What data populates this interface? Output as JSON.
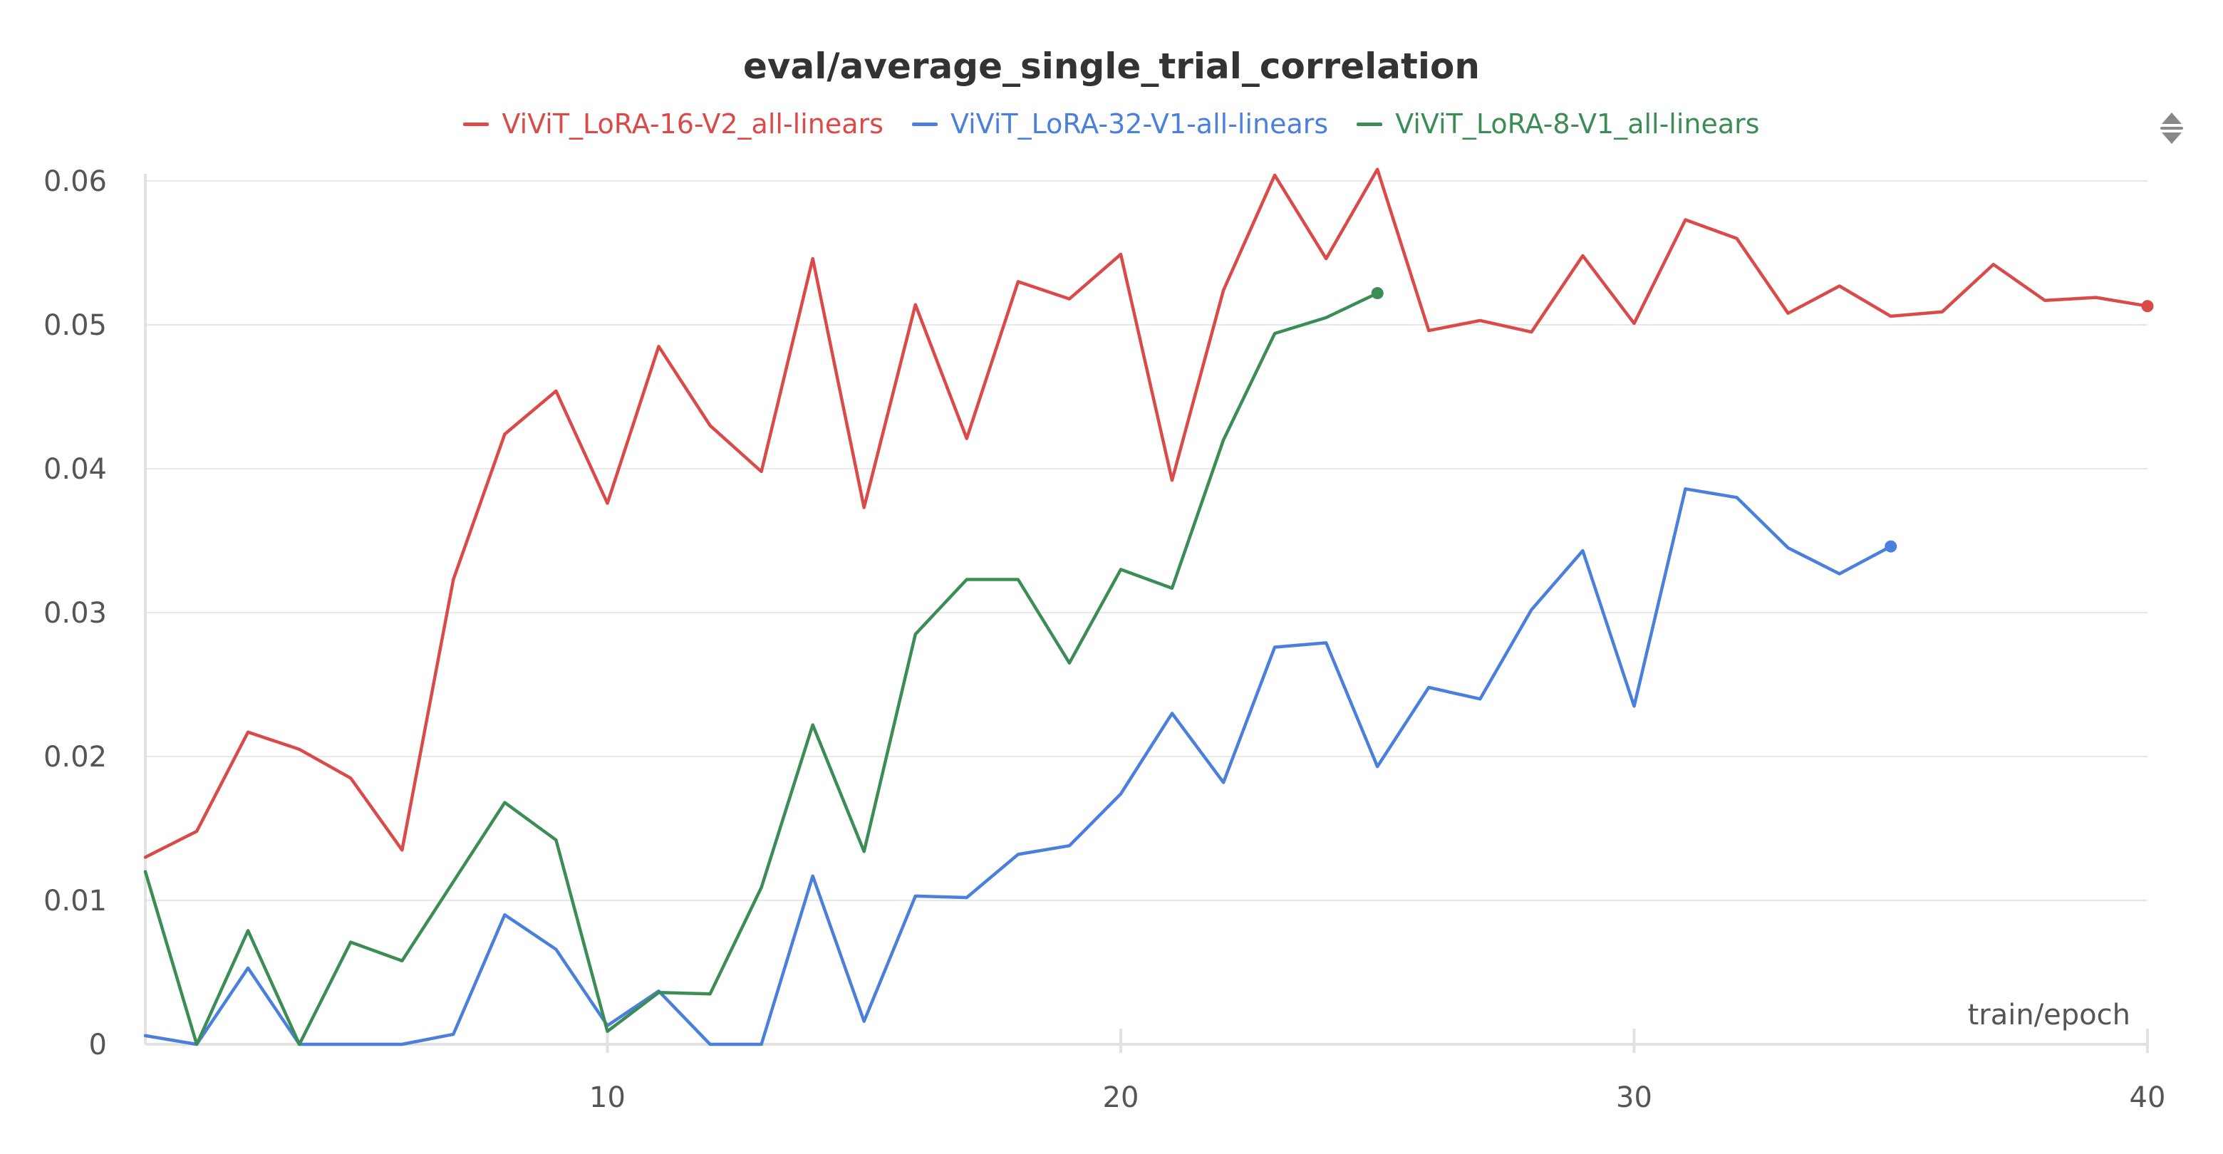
{
  "chart_data": {
    "type": "line",
    "title": "eval/average_single_trial_correlation",
    "xlabel": "train/epoch",
    "ylabel": "",
    "xlim": [
      1,
      40
    ],
    "ylim": [
      0,
      0.06
    ],
    "x_ticks": [
      10,
      20,
      30,
      40
    ],
    "x_tick_labels": [
      "10",
      "20",
      "30",
      "40"
    ],
    "y_ticks": [
      0,
      0.01,
      0.02,
      0.03,
      0.04,
      0.05,
      0.06
    ],
    "y_tick_labels": [
      "0",
      "0.01",
      "0.02",
      "0.03",
      "0.04",
      "0.05",
      "0.06"
    ],
    "grid": true,
    "legend_position": "top-center",
    "series": [
      {
        "name": "ViViT_LoRA-16-V2_all-linears",
        "color": "#d94a48",
        "x": [
          1,
          2,
          3,
          4,
          5,
          6,
          7,
          8,
          9,
          10,
          11,
          12,
          13,
          14,
          15,
          16,
          17,
          18,
          19,
          20,
          21,
          22,
          23,
          24,
          25,
          26,
          27,
          28,
          29,
          30,
          31,
          32,
          33,
          34,
          35,
          36,
          37,
          38,
          39,
          40
        ],
        "values": [
          0.013,
          0.0148,
          0.0217,
          0.0205,
          0.0185,
          0.0135,
          0.0323,
          0.0424,
          0.0454,
          0.0376,
          0.0485,
          0.043,
          0.0398,
          0.0546,
          0.0373,
          0.0514,
          0.0421,
          0.053,
          0.0518,
          0.0549,
          0.0392,
          0.0524,
          0.0604,
          0.0546,
          0.0608,
          0.0496,
          0.0503,
          0.0495,
          0.0548,
          0.0501,
          0.0573,
          0.056,
          0.0508,
          0.0527,
          0.0506,
          0.0509,
          0.0542,
          0.0517,
          0.0519,
          0.0513
        ]
      },
      {
        "name": "ViViT_LoRA-32-V1-all-linears",
        "color": "#4a80dc",
        "x": [
          1,
          2,
          3,
          4,
          5,
          6,
          7,
          8,
          9,
          10,
          11,
          12,
          13,
          14,
          15,
          16,
          17,
          18,
          19,
          20,
          21,
          22,
          23,
          24,
          25,
          26,
          27,
          28,
          29,
          30,
          31,
          32,
          33,
          34,
          35
        ],
        "values": [
          0.0006,
          0.0,
          0.0053,
          0.0,
          0.0,
          0.0,
          0.0007,
          0.009,
          0.0066,
          0.0013,
          0.0037,
          0.0,
          0.0,
          0.0117,
          0.0016,
          0.0103,
          0.0102,
          0.0132,
          0.0138,
          0.0174,
          0.023,
          0.0182,
          0.0276,
          0.0279,
          0.0193,
          0.0248,
          0.024,
          0.0302,
          0.0343,
          0.0235,
          0.0386,
          0.038,
          0.0345,
          0.0327,
          0.0346
        ]
      },
      {
        "name": "ViViT_LoRA-8-V1_all-linears",
        "color": "#3c8c56",
        "x": [
          1,
          2,
          3,
          4,
          5,
          6,
          7,
          8,
          9,
          10,
          11,
          12,
          13,
          14,
          15,
          16,
          17,
          18,
          19,
          20,
          21,
          22,
          23,
          24,
          25
        ],
        "values": [
          0.012,
          0.0,
          0.0079,
          0.0,
          0.0071,
          0.0058,
          0.0113,
          0.0168,
          0.0142,
          0.0009,
          0.0036,
          0.0035,
          0.0109,
          0.0222,
          0.0134,
          0.0285,
          0.0323,
          0.0323,
          0.0265,
          0.033,
          0.0317,
          0.042,
          0.0494,
          0.0505,
          0.0522
        ]
      }
    ]
  },
  "icons": {
    "menu": "chevron-up-down-icon"
  }
}
